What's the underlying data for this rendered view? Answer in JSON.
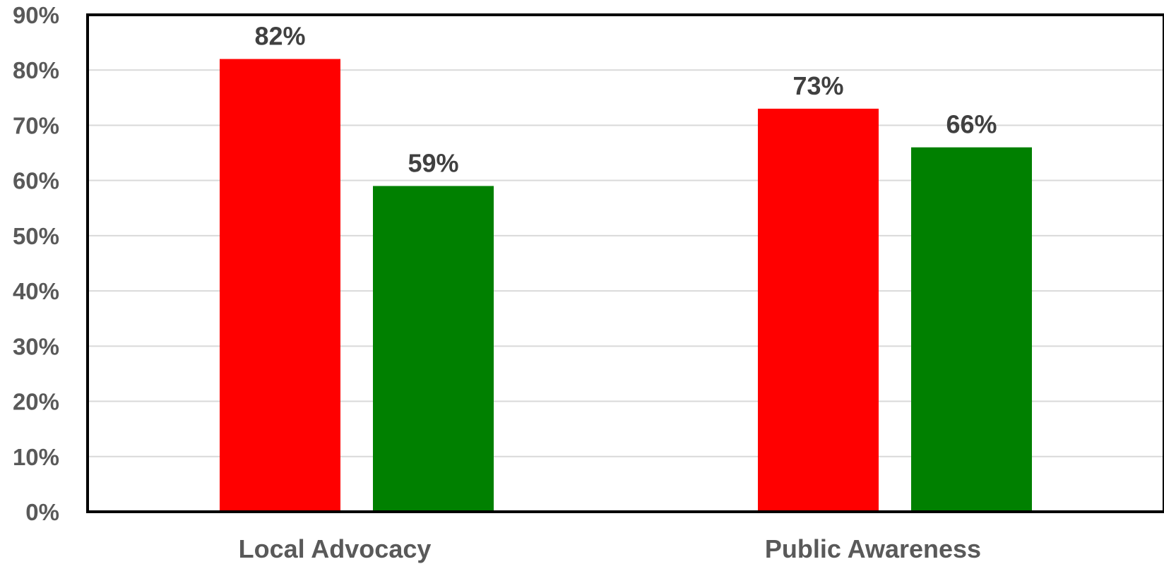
{
  "chart_data": {
    "type": "bar",
    "categories": [
      "Local Advocacy",
      "Public Awareness"
    ],
    "series": [
      {
        "values": [
          82,
          73
        ],
        "color": "#ff0000"
      },
      {
        "values": [
          59,
          66
        ],
        "color": "#008000"
      }
    ],
    "data_labels": [
      [
        "82%",
        "73%"
      ],
      [
        "59%",
        "66%"
      ]
    ],
    "yticks": [
      "0%",
      "10%",
      "20%",
      "30%",
      "40%",
      "50%",
      "60%",
      "70%",
      "80%",
      "90%"
    ],
    "ylim": [
      0,
      90
    ],
    "grid": true,
    "legend": "none",
    "title": "",
    "xlabel": "",
    "ylabel": ""
  }
}
